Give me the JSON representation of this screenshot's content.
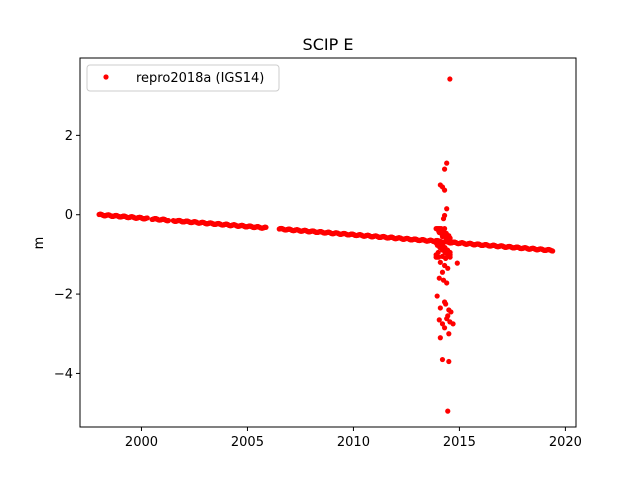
{
  "chart_data": {
    "type": "scatter",
    "title": "SCIP E",
    "xlabel": "",
    "ylabel": "m",
    "xlim": [
      1997.1,
      2020.5
    ],
    "ylim": [
      -5.35,
      3.95
    ],
    "x_ticks": [
      2000,
      2005,
      2010,
      2015,
      2020
    ],
    "x_tick_labels": [
      "2000",
      "2005",
      "2010",
      "2015",
      "2020"
    ],
    "y_ticks": [
      -4,
      -2,
      0,
      2
    ],
    "y_tick_labels": [
      "−4",
      "−2",
      "0",
      "2"
    ],
    "grid": false,
    "legend_position": "top-left",
    "series": [
      {
        "name": "repro2018a (IGS14)",
        "color": "#ff0000",
        "marker": "circle",
        "trend": {
          "x_start": 1998.0,
          "y_start": 0.0,
          "x_end": 2019.4,
          "y_end": -0.9
        },
        "data_gaps": [
          [
            2000.3,
            2000.5
          ],
          [
            2001.3,
            2001.5
          ],
          [
            2005.9,
            2006.5
          ]
        ],
        "outliers": [
          [
            2014.55,
            3.42
          ],
          [
            2014.4,
            1.3
          ],
          [
            2014.3,
            1.15
          ],
          [
            2014.3,
            0.62
          ],
          [
            2014.1,
            0.75
          ],
          [
            2014.2,
            0.7
          ],
          [
            2014.4,
            0.15
          ],
          [
            2014.3,
            -0.02
          ],
          [
            2014.25,
            -0.1
          ],
          [
            2014.3,
            -0.35
          ],
          [
            2014.05,
            -0.45
          ],
          [
            2014.2,
            -0.55
          ],
          [
            2014.4,
            -0.65
          ],
          [
            2014.1,
            -0.75
          ],
          [
            2014.3,
            -0.85
          ],
          [
            2014.0,
            -0.95
          ],
          [
            2014.2,
            -1.05
          ],
          [
            2014.35,
            -1.1
          ],
          [
            2014.1,
            -1.2
          ],
          [
            2014.9,
            -1.22
          ],
          [
            2014.3,
            -1.28
          ],
          [
            2014.45,
            -1.35
          ],
          [
            2014.2,
            -1.45
          ],
          [
            2014.05,
            -1.6
          ],
          [
            2014.25,
            -1.65
          ],
          [
            2014.4,
            -1.72
          ],
          [
            2013.95,
            -2.05
          ],
          [
            2014.3,
            -2.2
          ],
          [
            2014.35,
            -2.25
          ],
          [
            2014.1,
            -2.35
          ],
          [
            2014.5,
            -2.4
          ],
          [
            2014.6,
            -2.45
          ],
          [
            2014.45,
            -2.55
          ],
          [
            2014.4,
            -2.62
          ],
          [
            2014.05,
            -2.65
          ],
          [
            2014.55,
            -2.7
          ],
          [
            2014.2,
            -2.75
          ],
          [
            2014.3,
            -2.85
          ],
          [
            2014.5,
            -3.0
          ],
          [
            2014.7,
            -2.75
          ],
          [
            2014.1,
            -3.1
          ],
          [
            2014.2,
            -3.65
          ],
          [
            2014.5,
            -3.7
          ],
          [
            2014.45,
            -4.95
          ]
        ]
      }
    ]
  }
}
